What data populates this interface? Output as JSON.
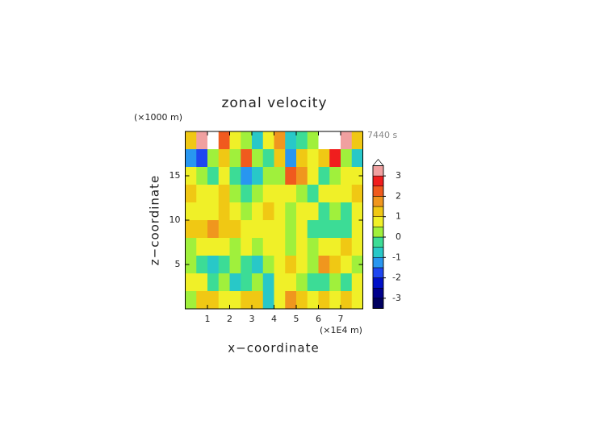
{
  "chart_data": {
    "type": "contour",
    "title": "zonal velocity",
    "x_label": "x−coordinate",
    "y_label": "z−coordinate",
    "x_unit": "(×1E4 m)",
    "y_unit": "(×1000 m)",
    "time_label": "7440 s",
    "xlim": [
      0,
      8
    ],
    "ylim": [
      0,
      20
    ],
    "xticks": [
      1,
      2,
      3,
      4,
      5,
      6,
      7
    ],
    "yticks": [
      5,
      10,
      15
    ],
    "x": [
      0.25,
      0.75,
      1.25,
      1.75,
      2.25,
      2.75,
      3.25,
      3.75,
      4.25,
      4.75,
      5.25,
      5.75,
      6.25,
      6.75,
      7.25,
      7.75
    ],
    "z": [
      19,
      17,
      15,
      13,
      11,
      9,
      7,
      5,
      3,
      1
    ],
    "values": [
      [
        1,
        3,
        4,
        2,
        0.5,
        0,
        -1,
        0.5,
        1.5,
        -1,
        -0.5,
        0,
        4,
        4,
        3,
        1
      ],
      [
        -1.5,
        -2,
        0,
        1,
        0,
        2,
        0,
        -0.5,
        1,
        -1.5,
        1,
        0.5,
        1,
        2.5,
        0,
        -1
      ],
      [
        0.5,
        0,
        -0.5,
        0.5,
        -0.5,
        -1.5,
        -1,
        0,
        0,
        2,
        1.5,
        0.5,
        -0.5,
        0,
        0.5,
        0.5
      ],
      [
        1,
        0.5,
        0.5,
        1,
        0,
        -0.5,
        0,
        0.5,
        0.5,
        0.5,
        0,
        -0.5,
        0.5,
        0.5,
        0.5,
        1
      ],
      [
        0.5,
        0.5,
        0.5,
        1,
        0.5,
        0,
        0.5,
        1,
        0.5,
        0,
        0.5,
        0.5,
        -0.5,
        0,
        -0.5,
        0.5
      ],
      [
        1,
        1,
        1.5,
        1,
        1,
        0.5,
        0.5,
        0.5,
        0.5,
        0,
        0.5,
        -0.5,
        -0.5,
        -0.5,
        -0.5,
        0.5
      ],
      [
        0,
        0.5,
        0.5,
        0.5,
        0,
        0.5,
        0,
        0.5,
        0.5,
        0,
        0.5,
        0,
        0.5,
        0.5,
        1,
        0.5
      ],
      [
        0,
        -0.5,
        -1,
        -0.5,
        0,
        -0.5,
        -1,
        0,
        0.5,
        1,
        0.5,
        0,
        1.5,
        1,
        0.5,
        0
      ],
      [
        0.5,
        0.5,
        -0.5,
        0,
        -1,
        -0.5,
        0,
        -1,
        0.5,
        0.5,
        0,
        -0.5,
        -0.5,
        0,
        -0.5,
        0.5
      ],
      [
        0,
        1,
        1,
        0.5,
        0.5,
        1,
        1,
        -1,
        0.5,
        1.5,
        1,
        0.5,
        1,
        0.5,
        1,
        0.5
      ]
    ],
    "levels": [
      -3.5,
      -3,
      -2.5,
      -2,
      -1.5,
      -1,
      -0.5,
      0,
      0.5,
      1,
      1.5,
      2,
      2.5,
      3,
      3.5
    ],
    "colors": [
      "#000060",
      "#00008c",
      "#0010c8",
      "#1e46f0",
      "#2896f0",
      "#28c8c8",
      "#3cdc96",
      "#a0f03c",
      "#f0f028",
      "#f0c814",
      "#f0961e",
      "#f05a1e",
      "#f01e1e",
      "#f0a0a0"
    ],
    "over_color": "#ffffff",
    "colorbar_ticks": [
      -3,
      -2,
      -1,
      0,
      1,
      2,
      3
    ]
  }
}
